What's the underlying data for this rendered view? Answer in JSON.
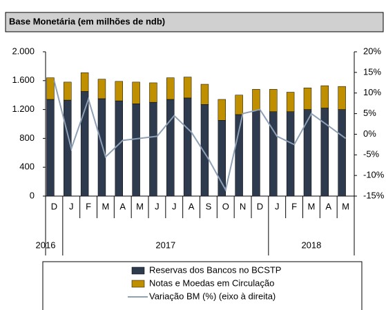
{
  "chart_data": {
    "type": "bar",
    "title": "Base Monetária (em milhões de ndb)",
    "categories": [
      "D",
      "J",
      "F",
      "M",
      "A",
      "M",
      "J",
      "J",
      "A",
      "S",
      "O",
      "N",
      "D",
      "J",
      "F",
      "M",
      "A",
      "M"
    ],
    "years": [
      "2016",
      "2017",
      "2018"
    ],
    "stacked": true,
    "series": [
      {
        "name": "Reservas dos Bancos no BCSTP",
        "type": "bar",
        "color": "#2e3a4e",
        "values": [
          1340,
          1330,
          1450,
          1350,
          1320,
          1280,
          1300,
          1340,
          1360,
          1270,
          1050,
          1130,
          1180,
          1170,
          1170,
          1200,
          1220,
          1200
        ]
      },
      {
        "name": "Notas e Moedas em Circulação",
        "type": "bar",
        "color": "#bf8f00",
        "values": [
          300,
          250,
          260,
          270,
          270,
          300,
          270,
          300,
          290,
          280,
          290,
          270,
          300,
          310,
          270,
          300,
          310,
          320
        ]
      },
      {
        "name": "Variação BM (%) (eixo à direita)",
        "type": "line",
        "axis": "y2",
        "color": "#8ea0b6",
        "values": [
          13,
          -3.5,
          8.5,
          -5.5,
          -1.5,
          -1,
          -0.5,
          4.5,
          0.5,
          -6,
          -13.5,
          5,
          6,
          -0.5,
          -2.5,
          5,
          2,
          -1
        ]
      }
    ],
    "ylim": [
      0,
      2000
    ],
    "yticks": [
      0,
      400,
      800,
      {
        "value": 1200,
        "label": "1.200"
      },
      {
        "value": 1600,
        "label": "1.600"
      },
      {
        "value": 2000,
        "label": "2.000"
      }
    ],
    "y2lim": [
      -15,
      20
    ],
    "y2ticks": [
      {
        "value": -15,
        "label": "-15%"
      },
      {
        "value": -10,
        "label": "-10%"
      },
      {
        "value": -5,
        "label": "-5%"
      },
      {
        "value": 0,
        "label": "0%"
      },
      {
        "value": 5,
        "label": "5%"
      },
      {
        "value": 10,
        "label": "10%"
      },
      {
        "value": 15,
        "label": "15%"
      },
      {
        "value": 20,
        "label": "20%"
      }
    ],
    "grid": false
  }
}
